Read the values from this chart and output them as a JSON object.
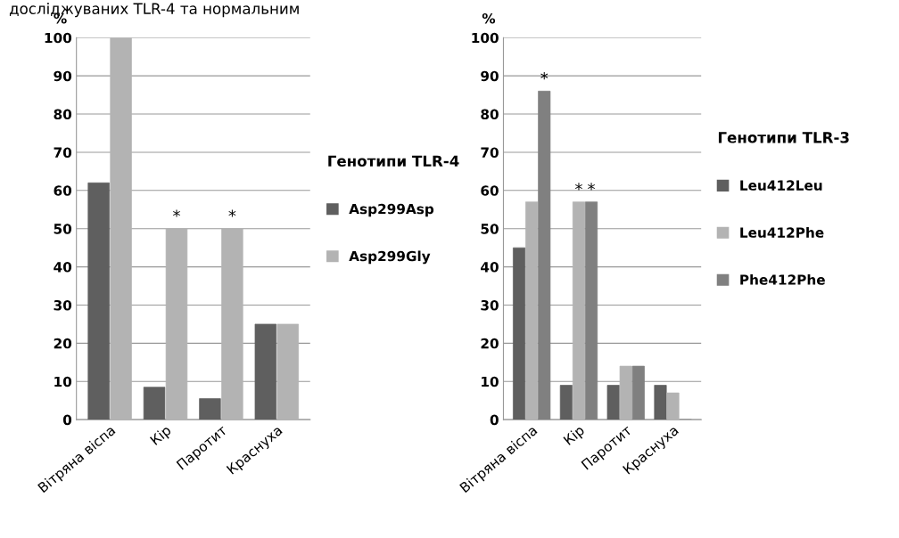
{
  "chart_data": [
    {
      "type": "bar",
      "ylabel": "%",
      "legend_title": "Генотипи TLR-4",
      "categories": [
        "Вітряна віспа",
        "Кір",
        "Паротит",
        "Краснуха"
      ],
      "series": [
        {
          "name": "Asp299Asp",
          "color": "#5f5f5f",
          "values": [
            62,
            8.5,
            5.5,
            25
          ]
        },
        {
          "name": "Asp299Gly",
          "color": "#b3b3b3",
          "values": [
            100,
            50,
            50,
            25
          ],
          "value_labels": [
            null,
            "*",
            "*",
            null
          ]
        }
      ],
      "ylim": [
        0,
        100
      ],
      "yticks": [
        0,
        10,
        20,
        30,
        40,
        50,
        60,
        70,
        80,
        90,
        100
      ],
      "grid": "y",
      "legend": "right",
      "annotations": [
        "досліджуваних TLR-4 та нормальним"
      ]
    },
    {
      "type": "bar",
      "ylabel": "%",
      "legend_title": "Генотипи TLR-3",
      "categories": [
        "Вітряна віспа",
        "Кір",
        "Паротит",
        "Краснуха"
      ],
      "series": [
        {
          "name": "Leu412Leu",
          "color": "#5f5f5f",
          "values": [
            45,
            9,
            9,
            9
          ]
        },
        {
          "name": "Leu412Phe",
          "color": "#b3b3b3",
          "values": [
            57,
            57,
            14,
            7
          ],
          "value_labels": [
            null,
            "*",
            null,
            null
          ]
        },
        {
          "name": "Phe412Phe",
          "color": "#808080",
          "values": [
            86,
            57,
            14,
            0
          ],
          "value_labels": [
            "*",
            "*",
            null,
            null
          ]
        }
      ],
      "ylim": [
        0,
        100
      ],
      "yticks": [
        0,
        10,
        20,
        30,
        40,
        50,
        60,
        70,
        80,
        90,
        100
      ],
      "grid": "y",
      "legend": "right"
    }
  ]
}
